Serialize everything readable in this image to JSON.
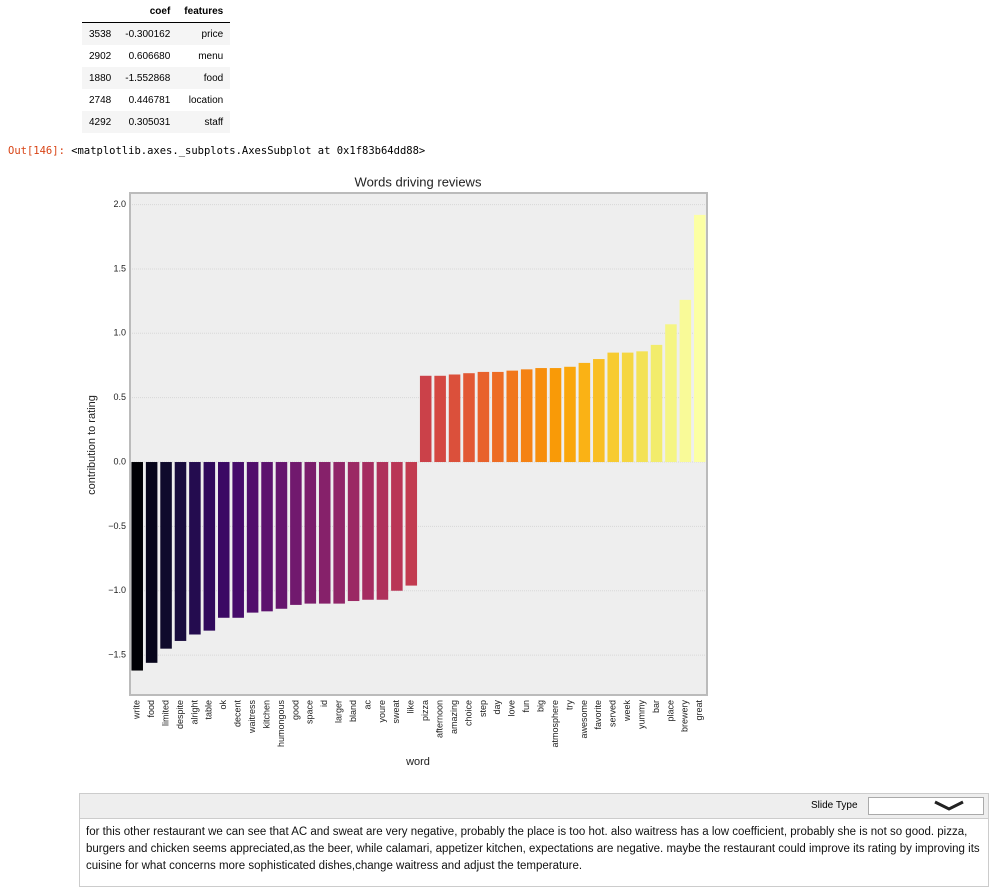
{
  "table": {
    "columns": [
      "coef",
      "features"
    ],
    "rows": [
      [
        "3538",
        "-0.300162",
        "price"
      ],
      [
        "2902",
        "0.606680",
        "menu"
      ],
      [
        "1880",
        "-1.552868",
        "food"
      ],
      [
        "2748",
        "0.446781",
        "location"
      ],
      [
        "4292",
        "0.305031",
        "staff"
      ]
    ]
  },
  "output": {
    "prompt": "Out[146]:",
    "text": "<matplotlib.axes._subplots.AxesSubplot at 0x1f83b64dd88>"
  },
  "chart_data": {
    "type": "bar",
    "title": "Words driving reviews",
    "x_label": "word",
    "y_label": "contribution to rating",
    "categories": [
      "write",
      "food",
      "limited",
      "despite",
      "alright",
      "table",
      "ok",
      "decent",
      "waitress",
      "kitchen",
      "humongous",
      "good",
      "space",
      "id",
      "larger",
      "bland",
      "ac",
      "youre",
      "sweat",
      "like",
      "pizza",
      "afternoon",
      "amazing",
      "choice",
      "step",
      "day",
      "love",
      "fun",
      "big",
      "atmosphere",
      "try",
      "awesome",
      "favorite",
      "served",
      "week",
      "yummy",
      "bar",
      "place",
      "brewery",
      "great"
    ],
    "values": [
      -1.62,
      -1.56,
      -1.45,
      -1.39,
      -1.34,
      -1.31,
      -1.21,
      -1.21,
      -1.17,
      -1.16,
      -1.14,
      -1.11,
      -1.1,
      -1.1,
      -1.1,
      -1.08,
      -1.07,
      -1.07,
      -1.0,
      -0.96,
      0.67,
      0.67,
      0.68,
      0.69,
      0.7,
      0.7,
      0.71,
      0.72,
      0.73,
      0.73,
      0.74,
      0.77,
      0.8,
      0.85,
      0.85,
      0.86,
      0.91,
      1.07,
      1.26,
      1.92
    ],
    "colors": [
      "#000004",
      "#07051b",
      "#0f0a2c",
      "#190c3e",
      "#240c4f",
      "#300a5c",
      "#3b0964",
      "#460b6a",
      "#510e6c",
      "#5c126e",
      "#66156e",
      "#71196e",
      "#7b1d6c",
      "#86216a",
      "#902568",
      "#9b2964",
      "#a52c60",
      "#af315b",
      "#b93556",
      "#c23b50",
      "#cb4149",
      "#d44842",
      "#db503b",
      "#e25834",
      "#e8622c",
      "#ed6c24",
      "#f1771c",
      "#f58214",
      "#f78e0c",
      "#f99a07",
      "#faa60b",
      "#fab215",
      "#f9be22",
      "#f7cb30",
      "#f5d641",
      "#f3e255",
      "#f2ec6b",
      "#f5f584",
      "#f9fa98",
      "#fcffa4"
    ],
    "ylim": [
      -1.81,
      2.09
    ],
    "yticks": [
      {
        "value": -1.5,
        "label": "−1.5"
      },
      {
        "value": -1.0,
        "label": "−1.0"
      },
      {
        "value": -0.5,
        "label": "−0.5"
      },
      {
        "value": 0,
        "label": "0.0"
      },
      {
        "value": 0.5,
        "label": "0.5"
      },
      {
        "value": 1.0,
        "label": "1.0"
      },
      {
        "value": 1.5,
        "label": "1.5"
      },
      {
        "value": 2.0,
        "label": "2.0"
      }
    ],
    "grid": true
  },
  "cell": {
    "slide_type_label": "Slide Type",
    "text": "for this other restaurant we can see that AC and sweat are very negative, probably the place is too hot. also waitress has a low coefficient, probably she is not so good. pizza, burgers and chicken seems appreciated,as the beer, while calamari, appetizer kitchen, expectations are negative. maybe the restaurant could improve its rating by improving its cuisine for what concerns more sophisticated dishes,change waitress and adjust the temperature."
  }
}
